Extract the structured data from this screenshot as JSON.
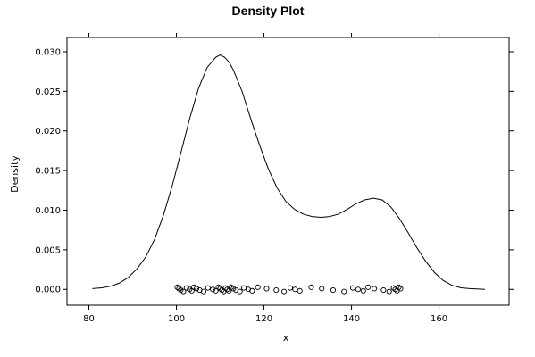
{
  "chart_data": {
    "type": "line",
    "title": "Density Plot",
    "xlabel": "x",
    "ylabel": "Density",
    "xlim": [
      75,
      176
    ],
    "ylim": [
      -0.002,
      0.0318
    ],
    "xticks": [
      80,
      100,
      120,
      140,
      160
    ],
    "xtick_labels": [
      "80",
      "100",
      "120",
      "140",
      "160"
    ],
    "yticks": [
      0.0,
      0.005,
      0.01,
      0.015,
      0.02,
      0.025,
      0.03
    ],
    "ytick_labels": [
      "0.000",
      "0.005",
      "0.010",
      "0.015",
      "0.020",
      "0.025",
      "0.030"
    ],
    "grid": false,
    "legend": "none",
    "series": [
      {
        "type": "line",
        "x": [
          80.8,
          83,
          85,
          87,
          89,
          91,
          93,
          95,
          97,
          99,
          101,
          103,
          105,
          107,
          109,
          110,
          111,
          112,
          113,
          115,
          117,
          119,
          121,
          123,
          125,
          127,
          129,
          131,
          133,
          135,
          137,
          139,
          141,
          143,
          145,
          147,
          149,
          151,
          153,
          155,
          157,
          159,
          161,
          163,
          165,
          167,
          170.5
        ],
        "y": [
          0.0001,
          0.0002,
          0.0004,
          0.0008,
          0.0015,
          0.0026,
          0.0041,
          0.0063,
          0.0093,
          0.013,
          0.0172,
          0.0215,
          0.0253,
          0.028,
          0.0293,
          0.0296,
          0.0293,
          0.0287,
          0.0277,
          0.025,
          0.0215,
          0.0182,
          0.0152,
          0.0128,
          0.0111,
          0.0101,
          0.0095,
          0.0092,
          0.0091,
          0.0092,
          0.0095,
          0.0101,
          0.0108,
          0.0113,
          0.0115,
          0.0113,
          0.0104,
          0.0089,
          0.0071,
          0.0052,
          0.0035,
          0.0021,
          0.0011,
          0.0005,
          0.0002,
          0.0001,
          0.0
        ]
      },
      {
        "type": "scatter",
        "marker": "open-circle",
        "x": [
          100.2,
          100.6,
          101.0,
          101.6,
          102.3,
          103.0,
          103.5,
          104.0,
          104.6,
          105.3,
          106.2,
          107.2,
          108.3,
          109.0,
          109.6,
          110.0,
          110.4,
          110.8,
          111.2,
          111.6,
          112.0,
          112.5,
          113.0,
          113.6,
          114.5,
          115.4,
          116.4,
          117.3,
          118.6,
          120.6,
          122.8,
          124.6,
          126.0,
          127.1,
          128.2,
          130.8,
          133.2,
          135.8,
          138.3,
          140.3,
          141.5,
          142.7,
          143.8,
          145.2,
          147.3,
          148.6,
          149.6,
          150.0,
          150.4,
          150.8,
          151.2
        ],
        "y": [
          0,
          0,
          0,
          0,
          0,
          0,
          0,
          0,
          0,
          0,
          0,
          0,
          0,
          0,
          0,
          0,
          0,
          0,
          0,
          0,
          0,
          0,
          0,
          0,
          0,
          0,
          0,
          0,
          0,
          0,
          0,
          0,
          0,
          0,
          0,
          0,
          0,
          0,
          0,
          0,
          0,
          0,
          0,
          0,
          0,
          0,
          0,
          0,
          0,
          0,
          0
        ]
      }
    ]
  }
}
